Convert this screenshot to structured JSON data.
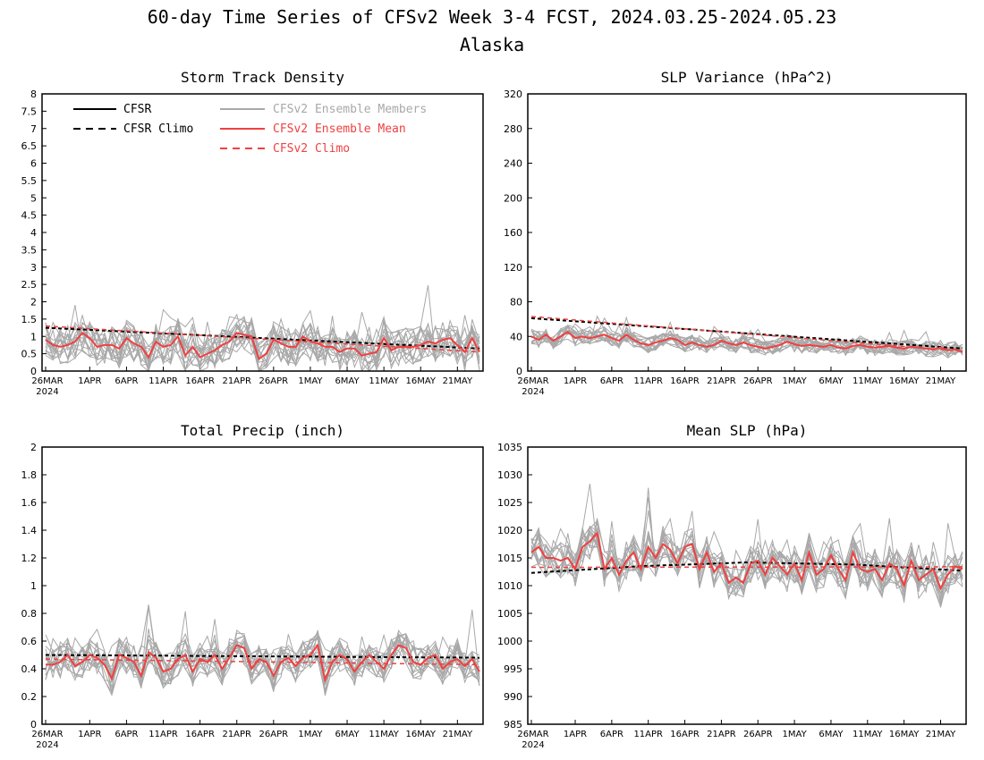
{
  "title": "60-day Time Series of CFSv2 Week 3-4 FCST, 2024.03.25-2024.05.23",
  "subtitle": "Alaska",
  "colors": {
    "cfsr": "#000000",
    "members": "#a8a8a8",
    "ens_mean": "#f04040",
    "cfsv2_climo": "#f04040"
  },
  "legend": [
    {
      "label": "CFSR",
      "style": "solid",
      "color": "#000000"
    },
    {
      "label": "CFSR Climo",
      "style": "dashed",
      "color": "#000000"
    },
    {
      "label": "CFSv2 Ensemble Members",
      "style": "solid",
      "color": "#a8a8a8"
    },
    {
      "label": "CFSv2 Ensemble Mean",
      "style": "solid",
      "color": "#f04040"
    },
    {
      "label": "CFSv2 Climo",
      "style": "dashed",
      "color": "#f04040"
    }
  ],
  "x_ticks": [
    "26MAR",
    "1APR",
    "6APR",
    "11APR",
    "16APR",
    "21APR",
    "26APR",
    "1MAY",
    "6MAY",
    "11MAY",
    "16MAY",
    "21MAY"
  ],
  "x_year": "2024",
  "chart_data": [
    {
      "type": "line",
      "title": "Storm Track Density",
      "ylim": [
        0,
        8
      ],
      "yticks": [
        "0",
        "0.5",
        "1",
        "1.5",
        "2",
        "2.5",
        "3",
        "3.5",
        "4",
        "4.5",
        "5",
        "5.5",
        "6",
        "6.5",
        "7",
        "7.5",
        "8"
      ],
      "n_days": 60,
      "series": [
        {
          "name": "CFSR Climo",
          "style": "dashed",
          "color": "#000000",
          "values_start_end": [
            1.25,
            0.65
          ]
        },
        {
          "name": "CFSv2 Climo",
          "style": "dashed",
          "color": "#f04040",
          "values_start_end": [
            1.3,
            0.55
          ]
        },
        {
          "name": "CFSv2 Ensemble Mean",
          "style": "solid",
          "color": "#f04040",
          "values": [
            0.9,
            0.75,
            0.7,
            0.75,
            0.85,
            1.1,
            0.95,
            0.7,
            0.75,
            0.75,
            0.65,
            0.95,
            0.8,
            0.7,
            0.4,
            0.85,
            0.7,
            0.75,
            1.0,
            0.45,
            0.7,
            0.4,
            0.5,
            0.6,
            0.75,
            0.85,
            1.1,
            1.05,
            1.0,
            0.35,
            0.5,
            0.9,
            0.8,
            0.7,
            0.7,
            1.0,
            0.85,
            0.8,
            0.7,
            0.7,
            0.55,
            0.65,
            0.65,
            0.45,
            0.5,
            0.55,
            0.95,
            0.6,
            0.7,
            0.7,
            0.7,
            0.75,
            0.85,
            0.8,
            0.9,
            0.95,
            0.75,
            0.55,
            0.95,
            0.55
          ]
        },
        {
          "name": "CFSv2 Ensemble Members",
          "style": "solid",
          "color": "#a8a8a8",
          "count": 16,
          "center": "ens_mean",
          "spread": 0.55,
          "min": 0
        }
      ]
    },
    {
      "type": "line",
      "title": "SLP Variance (hPa^2)",
      "ylim": [
        0,
        320
      ],
      "yticks": [
        "0",
        "40",
        "80",
        "120",
        "160",
        "200",
        "240",
        "280",
        "320"
      ],
      "n_days": 60,
      "series": [
        {
          "name": "CFSR Climo",
          "style": "dashed",
          "color": "#000000",
          "values_start_end": [
            61,
            26
          ]
        },
        {
          "name": "CFSv2 Climo",
          "style": "dashed",
          "color": "#f04040",
          "values_start_end": [
            63,
            23
          ]
        },
        {
          "name": "CFSv2 Ensemble Mean",
          "style": "solid",
          "color": "#f04040",
          "values": [
            40,
            36,
            42,
            35,
            40,
            45,
            38,
            40,
            38,
            40,
            42,
            38,
            35,
            42,
            36,
            32,
            30,
            33,
            35,
            38,
            36,
            30,
            33,
            30,
            28,
            30,
            35,
            32,
            30,
            33,
            30,
            28,
            26,
            28,
            30,
            34,
            31,
            29,
            30,
            29,
            28,
            30,
            27,
            26,
            29,
            30,
            28,
            27,
            28,
            29,
            27,
            26,
            28,
            27,
            26,
            25,
            27,
            24,
            25,
            22
          ]
        },
        {
          "name": "CFSv2 Ensemble Members",
          "style": "solid",
          "color": "#a8a8a8",
          "count": 16,
          "center": "ens_mean",
          "spread": 9,
          "min": 5
        }
      ]
    },
    {
      "type": "line",
      "title": "Total Precip (inch)",
      "ylim": [
        0,
        2
      ],
      "yticks": [
        "0",
        "0.2",
        "0.4",
        "0.6",
        "0.8",
        "1",
        "1.2",
        "1.4",
        "1.6",
        "1.8",
        "2"
      ],
      "n_days": 60,
      "series": [
        {
          "name": "CFSR Climo",
          "style": "dashed",
          "color": "#000000",
          "values_start_end": [
            0.5,
            0.48
          ]
        },
        {
          "name": "CFSv2 Climo",
          "style": "dashed",
          "color": "#f04040",
          "values_start_end": [
            0.47,
            0.43
          ]
        },
        {
          "name": "CFSv2 Ensemble Mean",
          "style": "solid",
          "color": "#f04040",
          "values": [
            0.43,
            0.43,
            0.45,
            0.5,
            0.42,
            0.45,
            0.5,
            0.48,
            0.43,
            0.33,
            0.5,
            0.48,
            0.45,
            0.35,
            0.52,
            0.48,
            0.38,
            0.4,
            0.47,
            0.5,
            0.38,
            0.47,
            0.45,
            0.5,
            0.4,
            0.48,
            0.57,
            0.55,
            0.4,
            0.47,
            0.45,
            0.35,
            0.45,
            0.48,
            0.42,
            0.48,
            0.5,
            0.57,
            0.32,
            0.45,
            0.5,
            0.47,
            0.38,
            0.45,
            0.5,
            0.45,
            0.4,
            0.5,
            0.57,
            0.55,
            0.45,
            0.43,
            0.48,
            0.5,
            0.4,
            0.45,
            0.47,
            0.42,
            0.47,
            0.38
          ]
        },
        {
          "name": "CFSv2 Ensemble Members",
          "style": "solid",
          "color": "#a8a8a8",
          "count": 16,
          "center": "ens_mean",
          "spread": 0.12,
          "min": 0.15
        }
      ]
    },
    {
      "type": "line",
      "title": "Mean SLP (hPa)",
      "ylim": [
        985,
        1035
      ],
      "yticks": [
        "985",
        "990",
        "995",
        "1000",
        "1005",
        "1010",
        "1015",
        "1020",
        "1025",
        "1030",
        "1035"
      ],
      "n_days": 60,
      "series": [
        {
          "name": "CFSR Climo",
          "style": "dashed",
          "color": "#000000",
          "values_mid": [
            1012.3,
            1013.5,
            1014.2,
            1013.8,
            1012.7
          ]
        },
        {
          "name": "CFSv2 Climo",
          "style": "dashed",
          "color": "#f04040",
          "values_start_end": [
            1013.3,
            1013.4
          ]
        },
        {
          "name": "CFSv2 Ensemble Mean",
          "style": "solid",
          "color": "#f04040",
          "values": [
            1016,
            1017,
            1015,
            1015,
            1014.5,
            1015,
            1013,
            1017,
            1018,
            1019.5,
            1013,
            1015,
            1012,
            1014.5,
            1016,
            1013,
            1017,
            1015,
            1017.5,
            1016.5,
            1014,
            1017,
            1017.5,
            1013,
            1016,
            1012.5,
            1014,
            1010.5,
            1011.5,
            1010.5,
            1014,
            1014.5,
            1012,
            1015,
            1013.5,
            1012,
            1014,
            1011,
            1016,
            1012,
            1013,
            1015.5,
            1013,
            1011,
            1016,
            1013,
            1012.5,
            1013,
            1011,
            1014,
            1013,
            1010,
            1014.5,
            1011,
            1012,
            1013,
            1009.5,
            1012,
            1013.5,
            1013
          ]
        },
        {
          "name": "CFSv2 Ensemble Members",
          "style": "solid",
          "color": "#a8a8a8",
          "count": 16,
          "center": "ens_mean",
          "spread": 3.5,
          "min": 1003
        }
      ]
    }
  ]
}
